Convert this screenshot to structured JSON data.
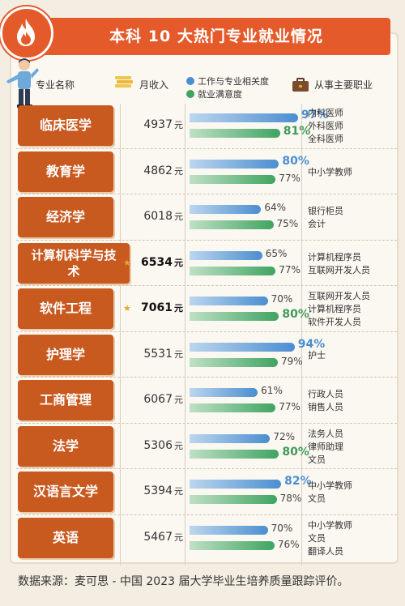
{
  "title": "本科 10 大热门专业就业情况",
  "headers": {
    "major": "专业名称",
    "income": "月收入",
    "legend_relevance": "工作与专业相关度",
    "legend_satisfaction": "就业满意度",
    "jobs": "从事主要职业"
  },
  "colors": {
    "title_bg": "#e55a2a",
    "major_bg": "#c8591f",
    "relevance": "#4b8ed0",
    "satisfaction": "#3fa461",
    "star": "#e3a72c"
  },
  "icons": {
    "fire": "fire-icon",
    "coin": "coin-stack-icon",
    "briefcase": "briefcase-icon",
    "person": "person-illustration-icon"
  },
  "unit": "元",
  "chart_data": {
    "type": "bar",
    "categories": [
      "临床医学",
      "教育学",
      "经济学",
      "计算机科学与技术",
      "软件工程",
      "护理学",
      "工商管理",
      "法学",
      "汉语言文学",
      "英语"
    ],
    "income": [
      4937,
      4862,
      6018,
      6534,
      7061,
      5531,
      6067,
      5306,
      5394,
      5467
    ],
    "series": [
      {
        "name": "工作与专业相关度",
        "values": [
          97,
          80,
          64,
          65,
          70,
          94,
          61,
          72,
          82,
          70
        ]
      },
      {
        "name": "就业满意度",
        "values": [
          81,
          77,
          75,
          77,
          80,
          79,
          77,
          80,
          78,
          76
        ]
      }
    ],
    "ylim": [
      0,
      100
    ]
  },
  "rows": [
    {
      "major": "临床医学",
      "income": "4937",
      "highlight": false,
      "rel": "97%",
      "sat": "81%",
      "rel_big": true,
      "sat_big": true,
      "jobs": [
        "内科医师",
        "外科医师",
        "全科医师"
      ]
    },
    {
      "major": "教育学",
      "income": "4862",
      "highlight": false,
      "rel": "80%",
      "sat": "77%",
      "rel_big": true,
      "sat_big": false,
      "jobs": [
        "中小学教师"
      ]
    },
    {
      "major": "经济学",
      "income": "6018",
      "highlight": false,
      "rel": "64%",
      "sat": "75%",
      "rel_big": false,
      "sat_big": false,
      "jobs": [
        "银行柜员",
        "会计"
      ]
    },
    {
      "major": "计算机科学与技术",
      "income": "6534",
      "highlight": true,
      "rel": "65%",
      "sat": "77%",
      "rel_big": false,
      "sat_big": false,
      "jobs": [
        "计算机程序员",
        "互联网开发人员"
      ]
    },
    {
      "major": "软件工程",
      "income": "7061",
      "highlight": true,
      "rel": "70%",
      "sat": "80%",
      "rel_big": false,
      "sat_big": true,
      "jobs": [
        "互联网开发人员",
        "计算机程序员",
        "软件开发人员"
      ]
    },
    {
      "major": "护理学",
      "income": "5531",
      "highlight": false,
      "rel": "94%",
      "sat": "79%",
      "rel_big": true,
      "sat_big": false,
      "jobs": [
        "护士"
      ]
    },
    {
      "major": "工商管理",
      "income": "6067",
      "highlight": false,
      "rel": "61%",
      "sat": "77%",
      "rel_big": false,
      "sat_big": false,
      "jobs": [
        "行政人员",
        "销售人员"
      ]
    },
    {
      "major": "法学",
      "income": "5306",
      "highlight": false,
      "rel": "72%",
      "sat": "80%",
      "rel_big": false,
      "sat_big": true,
      "jobs": [
        "法务人员",
        "律师助理",
        "文员"
      ]
    },
    {
      "major": "汉语言文学",
      "income": "5394",
      "highlight": false,
      "rel": "82%",
      "sat": "78%",
      "rel_big": true,
      "sat_big": false,
      "jobs": [
        "中小学教师",
        "文员"
      ]
    },
    {
      "major": "英语",
      "income": "5467",
      "highlight": false,
      "rel": "70%",
      "sat": "76%",
      "rel_big": false,
      "sat_big": false,
      "jobs": [
        "中小学教师",
        "文员",
        "翻译人员"
      ]
    }
  ],
  "source": "数据来源：麦可思 - 中国 2023 届大学毕业生培养质量跟踪评价。"
}
